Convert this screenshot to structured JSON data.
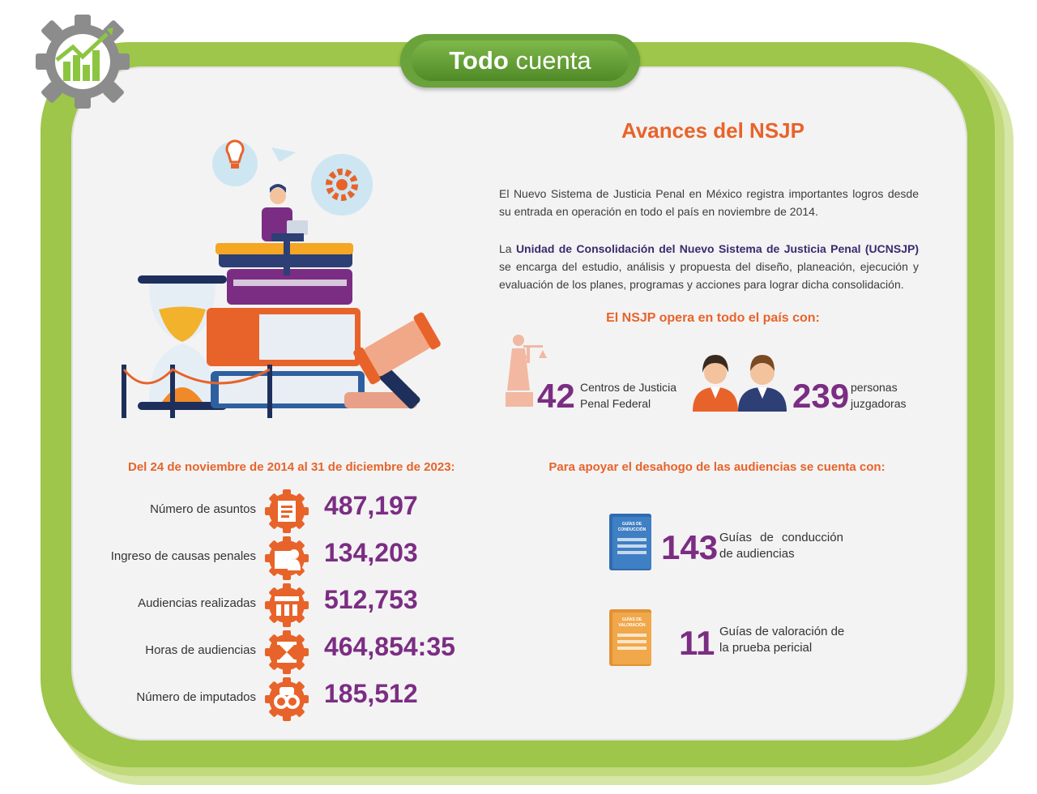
{
  "header": {
    "title_bold": "Todo",
    "title_rest": "cuenta"
  },
  "main_title": "Avances del NSJP",
  "intro": "El Nuevo Sistema de Justicia Penal en México registra importantes logros desde su entrada en operación en todo el país en noviembre de 2014.",
  "unit": {
    "prefix": "La",
    "name": "Unidad de Consolidación del Nuevo Sistema de Justicia Penal (UCNSJP)",
    "text": "se encarga del estudio, análisis y propuesta del diseño, planeación, ejecución y evaluación de los planes, programas y acciones para lograr dicha consolidación."
  },
  "country": {
    "heading": "El NSJP opera en todo el país con:",
    "centros": {
      "value": "42",
      "label_line1": "Centros de Justicia",
      "label_line2": "Penal Federal"
    },
    "personas": {
      "value": "239",
      "label_line1": "personas",
      "label_line2": "juzgadoras"
    }
  },
  "period_heading": "Del 24 de noviembre de 2014 al 31 de diciembre de 2023:",
  "stats": [
    {
      "label": "Número de asuntos",
      "value": "487,197",
      "icon": "document-icon"
    },
    {
      "label": "Ingreso de causas penales",
      "value": "134,203",
      "icon": "folder-person-icon"
    },
    {
      "label": "Audiencias realizadas",
      "value": "512,753",
      "icon": "courtroom-icon"
    },
    {
      "label": "Horas de audiencias",
      "value": "464,854:35",
      "icon": "hourglass-icon"
    },
    {
      "label": "Número de imputados",
      "value": "185,512",
      "icon": "handcuffs-icon"
    }
  ],
  "support": {
    "heading": "Para apoyar el desahogo de las audiencias se cuenta con:",
    "guides": [
      {
        "value": "143",
        "label_line1": "Guías de conducción",
        "label_line2": "de audiencias",
        "book_title_1": "GUÍAS DE",
        "book_title_2": "CONDUCCIÓN",
        "color": "#3f7fc4"
      },
      {
        "value": "11",
        "label_line1": "Guías de valoración de",
        "label_line2": "la prueba pericial",
        "book_title_1": "GUÍAS DE",
        "book_title_2": "VALORACIÓN",
        "color": "#f0a84a"
      }
    ]
  },
  "colors": {
    "accent_orange": "#e8632a",
    "accent_purple": "#7b2d83",
    "frame_green": "#9dc64a"
  }
}
